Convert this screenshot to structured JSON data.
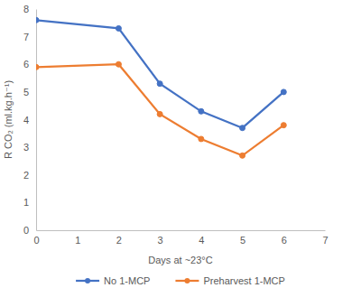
{
  "chart_data": {
    "type": "line",
    "x_label": "Days at ~23°C",
    "y_label": "R CO₂ (ml.kg.h⁻¹)",
    "x": [
      0,
      2,
      3,
      4,
      5,
      6
    ],
    "series": [
      {
        "name": "No 1-MCP",
        "color": "#4472c4",
        "values": [
          7.6,
          7.3,
          5.3,
          4.3,
          3.7,
          5.0
        ],
        "marker": "circle",
        "line_style": "solid"
      },
      {
        "name": "Preharvest 1-MCP",
        "color": "#ed7d31",
        "values": [
          5.9,
          6.0,
          4.2,
          3.3,
          2.7,
          3.8
        ],
        "marker": "circle",
        "line_style": "solid"
      }
    ],
    "xlim": [
      0,
      7
    ],
    "xticks": [
      0,
      1,
      2,
      3,
      4,
      5,
      6,
      7
    ],
    "ylim": [
      0,
      8
    ],
    "yticks": [
      0,
      1,
      2,
      3,
      4,
      5,
      6,
      7,
      8
    ],
    "grid": false,
    "legend": "bottom"
  }
}
